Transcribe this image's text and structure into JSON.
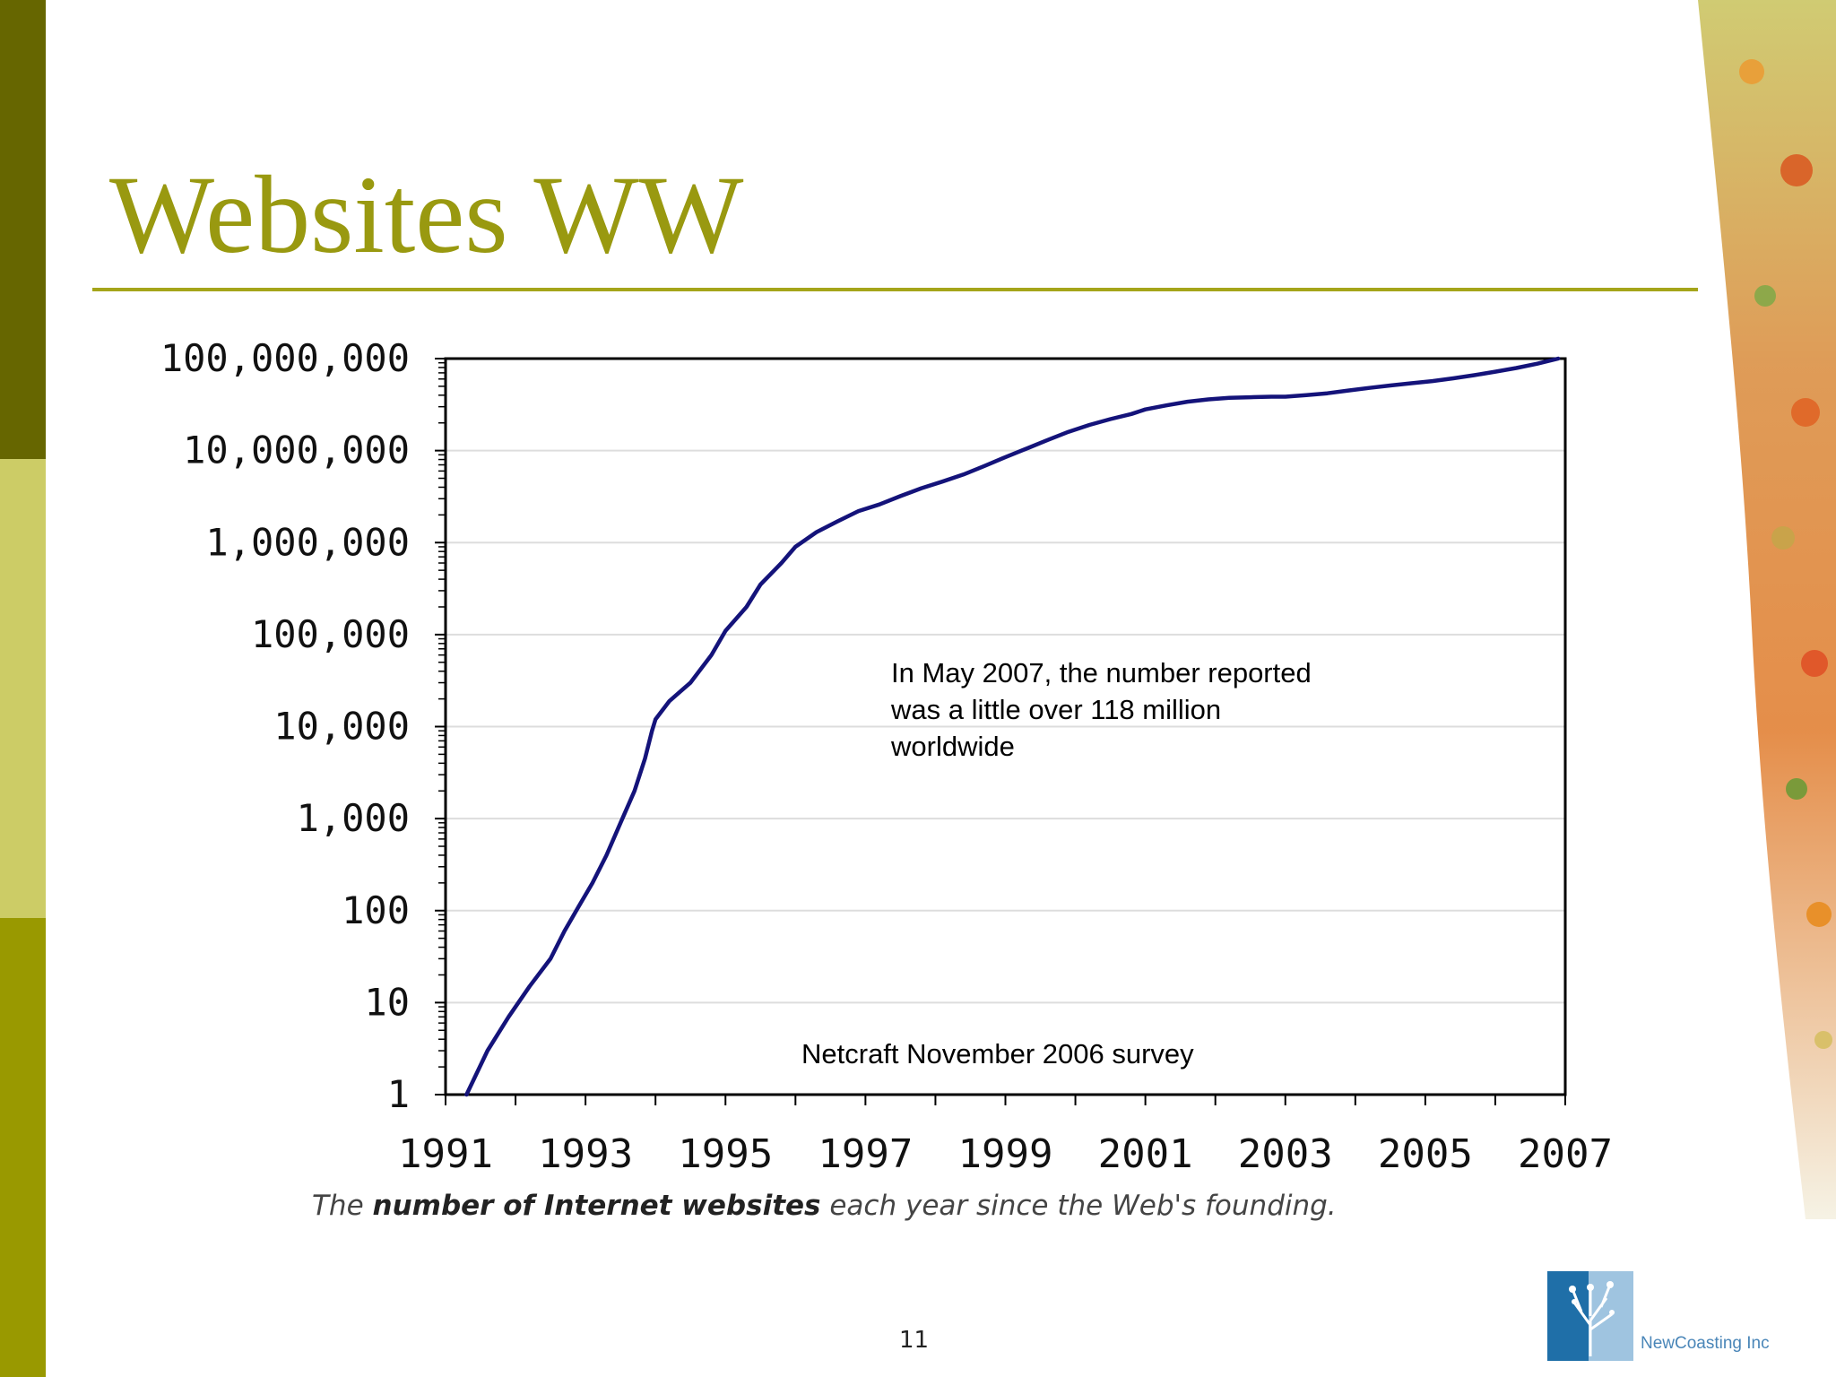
{
  "slide": {
    "title": "Websites WW",
    "page_number": "11",
    "logo_text": "NewCoasting Inc",
    "colors": {
      "title": "#999910",
      "rule": "#a5a51a",
      "bar_dark": "#666600",
      "bar_light": "#cccc66",
      "bar_mid": "#999900",
      "line": "#14137a"
    }
  },
  "annotation": "In May 2007, the number reported\nwas a little over 118 million\nworldwide",
  "source_note": "Netcraft November 2006 survey",
  "caption": {
    "part1": "The ",
    "bold": "number of Internet websites",
    "part2": " each year since the Web's founding."
  },
  "chart_data": {
    "type": "line",
    "y_scale": "log",
    "ylim": [
      1,
      100000000
    ],
    "xlim": [
      1991,
      2007
    ],
    "y_tick_labels": [
      "1",
      "10",
      "100",
      "1,000",
      "10,000",
      "100,000",
      "1,000,000",
      "10,000,000",
      "100,000,000"
    ],
    "x_tick_labels": [
      "1991",
      "1993",
      "1995",
      "1997",
      "1999",
      "2001",
      "2003",
      "2005",
      "2007"
    ],
    "grid": "horizontal",
    "series": [
      {
        "x": [
          1991.3,
          1991.6,
          1991.9,
          1992.2,
          1992.5,
          1992.7,
          1992.9,
          1993.1,
          1993.3,
          1993.5,
          1993.7,
          1993.85,
          1993.95,
          1994.0,
          1994.2,
          1994.5,
          1994.8,
          1995.0,
          1995.3,
          1995.5,
          1995.8,
          1996.0,
          1996.3,
          1996.6,
          1996.9,
          1997.2,
          1997.5,
          1997.8,
          1998.1,
          1998.4,
          1998.7,
          1999.0,
          1999.3,
          1999.6,
          1999.9,
          2000.2,
          2000.5,
          2000.8,
          2001.0,
          2001.3,
          2001.6,
          2001.9,
          2002.2,
          2002.5,
          2002.8,
          2003.0,
          2003.3,
          2003.6,
          2003.9,
          2004.2,
          2004.5,
          2004.8,
          2005.1,
          2005.4,
          2005.7,
          2006.0,
          2006.3,
          2006.6,
          2006.9
        ],
        "y": [
          1,
          3,
          7,
          15,
          30,
          60,
          110,
          200,
          400,
          900,
          2000,
          4500,
          9000,
          12000,
          19000,
          30000,
          60000,
          110000,
          200000,
          350000,
          600000,
          900000,
          1300000,
          1700000,
          2200000,
          2600000,
          3200000,
          3900000,
          4600000,
          5500000,
          6800000,
          8500000,
          10500000,
          13000000,
          16000000,
          19000000,
          22000000,
          25000000,
          28000000,
          31000000,
          34000000,
          36000000,
          37500000,
          38000000,
          38500000,
          38500000,
          40000000,
          42000000,
          45000000,
          48000000,
          51000000,
          54000000,
          57000000,
          61000000,
          66000000,
          72000000,
          79000000,
          88000000,
          100000000
        ]
      }
    ]
  }
}
